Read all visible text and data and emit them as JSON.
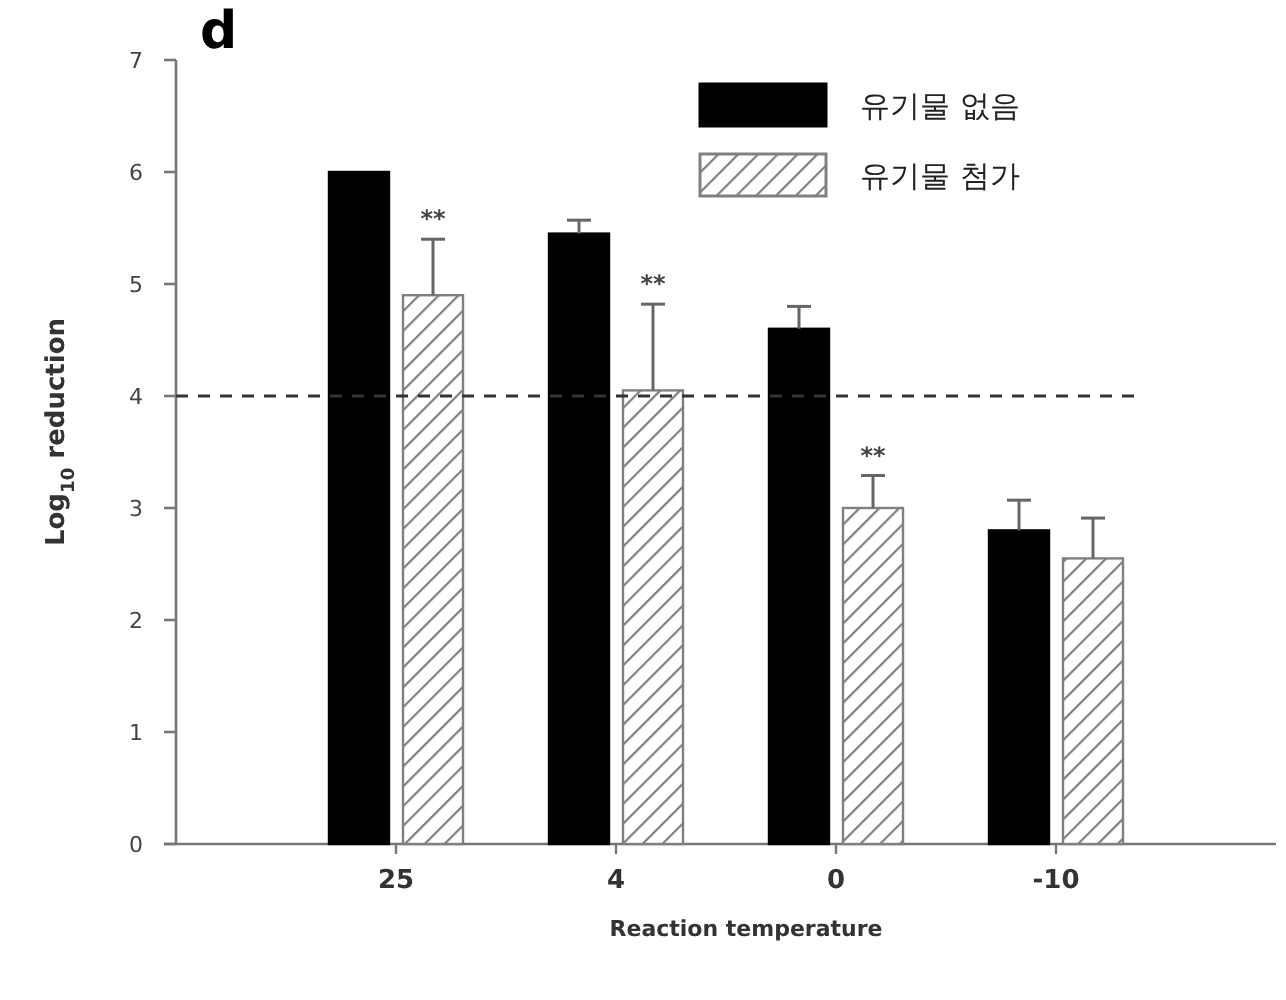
{
  "chart_data": {
    "type": "bar",
    "title": "d",
    "xlabel": "Reaction temperature",
    "ylabel": "Log$_{10}$ reduction",
    "categories": [
      "25",
      "4",
      "0",
      "-10"
    ],
    "series": [
      {
        "name": "유기물 없음",
        "color": "#000000",
        "values": [
          6.0,
          5.45,
          4.6,
          2.8
        ],
        "errors": [
          null,
          [
            5.45,
            5.57
          ],
          [
            4.6,
            4.8
          ],
          [
            2.8,
            3.07
          ]
        ]
      },
      {
        "name": "유기물 첨가",
        "color": "#808080",
        "values": [
          4.9,
          4.05,
          3.0,
          2.55
        ],
        "errors": [
          [
            4.9,
            5.4
          ],
          [
            4.05,
            4.82
          ],
          [
            3.0,
            3.29
          ],
          [
            2.55,
            2.91
          ]
        ]
      }
    ],
    "ylim": [
      0,
      7
    ],
    "yticks": [
      0,
      1,
      2,
      3,
      4,
      5,
      6,
      7
    ],
    "ref_lines": [
      {
        "axis": "y",
        "value": 4,
        "line_style": "dashed"
      }
    ],
    "annotations": [
      {
        "text": "**",
        "x": "25",
        "y": 5.4
      },
      {
        "text": "**",
        "x": "4",
        "y": 4.82
      },
      {
        "text": "**",
        "x": "0",
        "y": 3.29
      }
    ],
    "legend": "top right"
  }
}
